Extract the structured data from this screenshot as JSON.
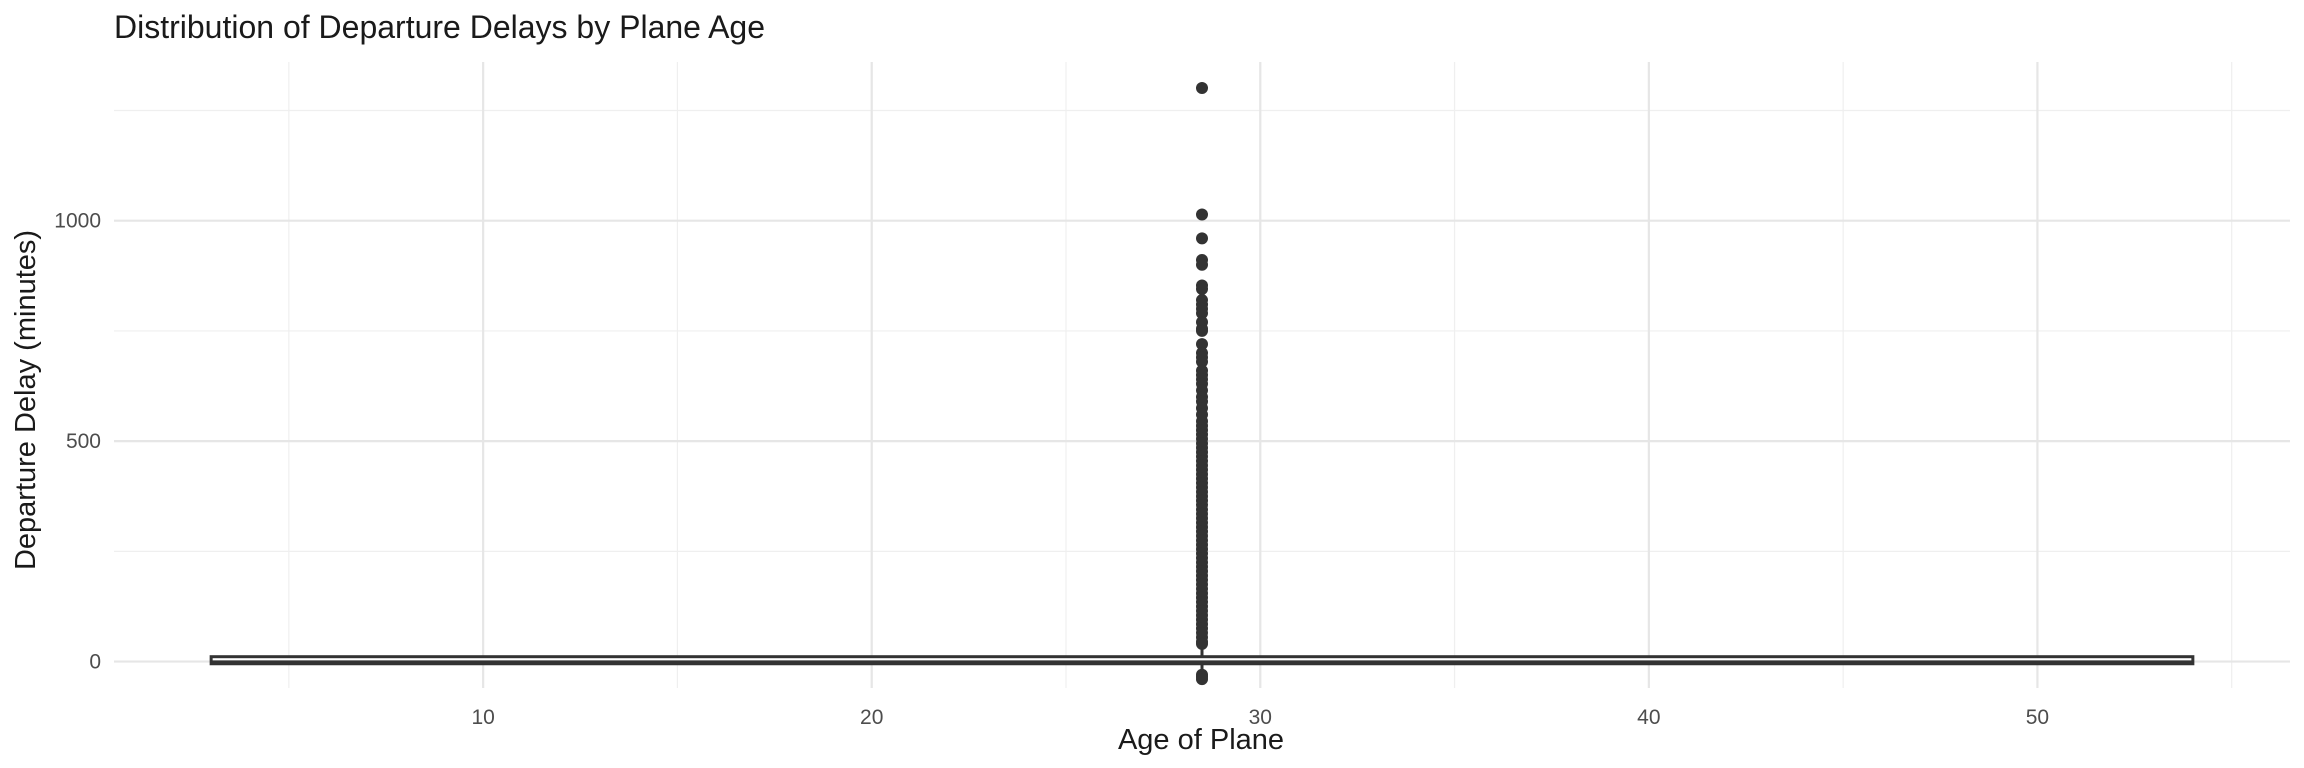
{
  "chart_data": {
    "type": "boxplot",
    "title": "Distribution of Departure Delays by Plane Age",
    "xlabel": "Age of Plane",
    "ylabel": "Departure Delay (minutes)",
    "xlim": [
      0.5,
      56.5
    ],
    "ylim": [
      -60,
      1360
    ],
    "x_ticks": [
      10,
      20,
      30,
      40,
      50
    ],
    "x_minor_ticks": [
      5,
      15,
      25,
      35,
      45,
      55
    ],
    "y_ticks": [
      0,
      500,
      1000
    ],
    "y_minor_ticks": [
      250,
      750,
      1250
    ],
    "grid": true,
    "box": {
      "x_center": 28.5,
      "x_span": [
        3,
        54
      ],
      "q1": -5,
      "median": -2,
      "q3": 11,
      "whisker_low": -20,
      "whisker_high": 35,
      "fill": "#ffffff",
      "outline": "#333333"
    },
    "outliers": {
      "x": 28.5,
      "color": "#333333",
      "values": [
        1301,
        1014,
        960,
        911,
        900,
        853,
        845,
        820,
        810,
        800,
        790,
        770,
        755,
        750,
        720,
        700,
        690,
        680,
        660,
        650,
        640,
        630,
        615,
        600,
        590,
        575,
        560,
        545,
        535,
        525,
        515,
        505,
        495,
        485,
        475,
        465,
        455,
        445,
        435,
        425,
        415,
        405,
        395,
        385,
        375,
        365,
        355,
        345,
        335,
        325,
        315,
        305,
        295,
        285,
        275,
        265,
        255,
        245,
        235,
        225,
        215,
        205,
        195,
        185,
        175,
        165,
        155,
        145,
        135,
        125,
        115,
        105,
        95,
        85,
        75,
        65,
        55,
        45,
        40,
        -30,
        -35,
        -40
      ]
    }
  }
}
